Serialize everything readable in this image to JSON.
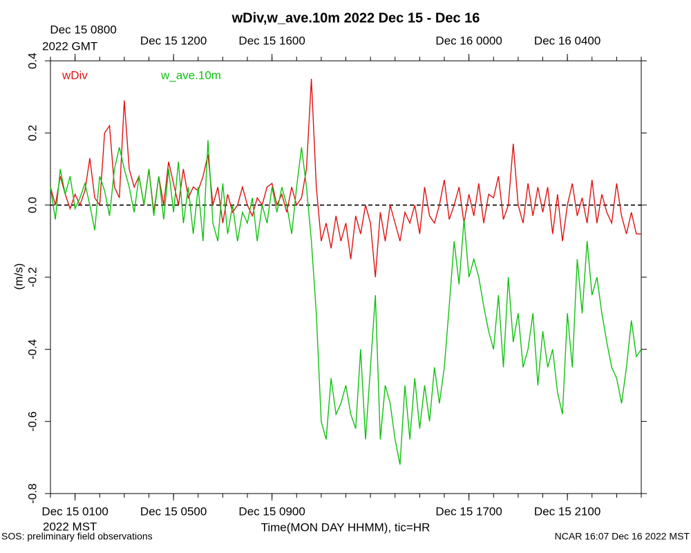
{
  "chart_data": {
    "type": "line",
    "title": "wDiv,w_ave.10m 2022 Dec 15 - Dec 16",
    "xlabel": "Time(MON DAY HHMM), tic=HR",
    "xaxis_note": "2022 MST",
    "x2axis_note": "2022 GMT",
    "ylabel": "(m/s)",
    "footer_left": "SOS: preliminary field observations",
    "footer_right": "NCAR 16:07 Dec 16 2022 MST",
    "xlim": [
      0,
      24
    ],
    "xticks": [
      {
        "value": 1,
        "label": "Dec 15 0100"
      },
      {
        "value": 5,
        "label": "Dec 15 0500"
      },
      {
        "value": 9,
        "label": "Dec 15 0900"
      },
      {
        "value": 17,
        "label": "Dec 15 1700"
      },
      {
        "value": 21,
        "label": "Dec 15 2100"
      }
    ],
    "x2ticks": [
      {
        "value": 1,
        "label": "Dec 15 0800"
      },
      {
        "value": 5,
        "label": "Dec 15 1200"
      },
      {
        "value": 9,
        "label": "Dec 15 1600"
      },
      {
        "value": 17,
        "label": "Dec 16 0000"
      },
      {
        "value": 21,
        "label": "Dec 16 0400"
      }
    ],
    "xminor_ticks": [
      0,
      1,
      2,
      3,
      4,
      5,
      6,
      7,
      8,
      9,
      10,
      11,
      12,
      13,
      14,
      15,
      16,
      17,
      18,
      19,
      20,
      21,
      22,
      23,
      24
    ],
    "ylim": [
      -0.8,
      0.4
    ],
    "yticks": [
      -0.8,
      -0.6,
      -0.4,
      -0.2,
      {
        "value": 0,
        "label": "0.0"
      },
      0.2,
      0.4
    ],
    "zero_line": 0,
    "x": [
      0,
      0.2,
      0.4,
      0.6,
      0.8,
      1,
      1.2,
      1.4,
      1.6,
      1.8,
      2,
      2.2,
      2.4,
      2.6,
      2.8,
      3,
      3.2,
      3.4,
      3.6,
      3.8,
      4,
      4.2,
      4.4,
      4.6,
      4.8,
      5,
      5.2,
      5.4,
      5.6,
      5.8,
      6,
      6.2,
      6.4,
      6.6,
      6.8,
      7,
      7.2,
      7.4,
      7.6,
      7.8,
      8,
      8.2,
      8.4,
      8.6,
      8.8,
      9,
      9.2,
      9.4,
      9.6,
      9.8,
      10,
      10.2,
      10.4,
      10.6,
      10.8,
      11,
      11.2,
      11.4,
      11.6,
      11.8,
      12,
      12.2,
      12.4,
      12.6,
      12.8,
      13,
      13.2,
      13.4,
      13.6,
      13.8,
      14,
      14.2,
      14.4,
      14.6,
      14.8,
      15,
      15.2,
      15.4,
      15.6,
      15.8,
      16,
      16.2,
      16.4,
      16.6,
      16.8,
      17,
      17.2,
      17.4,
      17.6,
      17.8,
      18,
      18.2,
      18.4,
      18.6,
      18.8,
      19,
      19.2,
      19.4,
      19.6,
      19.8,
      20,
      20.2,
      20.4,
      20.6,
      20.8,
      21,
      21.2,
      21.4,
      21.6,
      21.8,
      22,
      22.2,
      22.4,
      22.6,
      22.8,
      23,
      23.2,
      23.4,
      23.6,
      23.8,
      24
    ],
    "series": [
      {
        "name": "wDiv",
        "color": "#e01010",
        "values": [
          0.05,
          0.0,
          0.08,
          0.03,
          -0.01,
          0.03,
          0.0,
          0.04,
          0.13,
          0.02,
          0.0,
          0.2,
          0.22,
          0.05,
          0.02,
          0.29,
          0.1,
          0.05,
          0.08,
          0.0,
          0.1,
          -0.02,
          0.08,
          0.0,
          0.12,
          0.06,
          0.0,
          0.1,
          0.02,
          0.05,
          0.04,
          0.08,
          0.14,
          0.0,
          0.05,
          -0.05,
          0.03,
          -0.02,
          0.0,
          0.05,
          0.0,
          -0.03,
          0.02,
          0.0,
          0.05,
          0.06,
          0.0,
          0.03,
          -0.02,
          0.05,
          0.0,
          0.02,
          0.1,
          0.35,
          0.05,
          -0.1,
          -0.05,
          -0.12,
          -0.03,
          -0.1,
          -0.05,
          -0.15,
          -0.03,
          -0.08,
          0.0,
          -0.05,
          -0.2,
          -0.02,
          -0.1,
          0.0,
          -0.05,
          -0.1,
          -0.02,
          -0.05,
          0.0,
          -0.08,
          0.05,
          -0.03,
          -0.05,
          0.0,
          0.07,
          -0.04,
          0.0,
          0.05,
          -0.05,
          0.03,
          -0.03,
          0.06,
          -0.05,
          0.03,
          0.02,
          0.08,
          -0.04,
          0.0,
          0.17,
          0.0,
          -0.05,
          0.06,
          -0.03,
          0.05,
          -0.02,
          0.05,
          -0.08,
          0.03,
          -0.1,
          0.0,
          0.06,
          -0.03,
          0.02,
          -0.05,
          0.07,
          -0.05,
          0.03,
          -0.02,
          -0.05,
          0.06,
          -0.03,
          -0.08,
          -0.02,
          -0.08,
          -0.08
        ]
      },
      {
        "name": "w_ave.10m",
        "color": "#10c010",
        "values": [
          0.05,
          -0.04,
          0.1,
          0.03,
          0.08,
          -0.01,
          0.02,
          0.06,
          0.0,
          -0.07,
          0.08,
          0.04,
          -0.03,
          0.1,
          0.16,
          0.1,
          0.05,
          -0.02,
          0.08,
          0.0,
          0.1,
          -0.03,
          0.08,
          -0.04,
          0.1,
          -0.02,
          0.12,
          -0.05,
          0.05,
          -0.08,
          0.05,
          -0.1,
          0.18,
          -0.05,
          -0.1,
          0.06,
          -0.08,
          0.0,
          -0.1,
          -0.02,
          -0.05,
          0.02,
          -0.1,
          0.0,
          -0.05,
          0.05,
          -0.02,
          0.05,
          0.0,
          -0.08,
          0.05,
          0.16,
          0.05,
          -0.1,
          -0.3,
          -0.6,
          -0.65,
          -0.48,
          -0.58,
          -0.55,
          -0.5,
          -0.58,
          -0.62,
          -0.4,
          -0.65,
          -0.45,
          -0.25,
          -0.65,
          -0.5,
          -0.55,
          -0.65,
          -0.72,
          -0.5,
          -0.65,
          -0.48,
          -0.62,
          -0.5,
          -0.6,
          -0.45,
          -0.55,
          -0.45,
          -0.28,
          -0.1,
          -0.22,
          -0.04,
          -0.2,
          -0.15,
          -0.2,
          -0.28,
          -0.35,
          -0.4,
          -0.25,
          -0.45,
          -0.2,
          -0.38,
          -0.3,
          -0.45,
          -0.4,
          -0.3,
          -0.5,
          -0.35,
          -0.45,
          -0.4,
          -0.52,
          -0.58,
          -0.3,
          -0.45,
          -0.15,
          -0.3,
          -0.1,
          -0.25,
          -0.2,
          -0.3,
          -0.38,
          -0.45,
          -0.48,
          -0.55,
          -0.45,
          -0.32,
          -0.42,
          -0.4
        ]
      }
    ]
  }
}
